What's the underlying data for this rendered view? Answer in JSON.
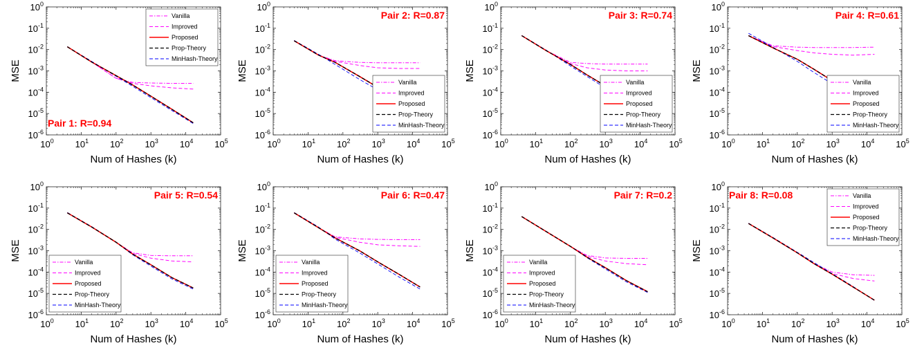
{
  "chart_data": {
    "type": "line",
    "xlabel": "Num of Hashes (k)",
    "ylabel": "MSE",
    "xscale": "log",
    "yscale": "log",
    "xlim": [
      1,
      100000
    ],
    "ylim": [
      1e-06,
      1
    ],
    "xticks": [
      "10",
      "10",
      "10",
      "10",
      "10",
      "10"
    ],
    "xtick_exponents": [
      "0",
      "1",
      "2",
      "3",
      "4",
      "5"
    ],
    "yticks": [
      "10",
      "10",
      "10",
      "10",
      "10",
      "10",
      "10"
    ],
    "ytick_exponents": [
      "-6",
      "-5",
      "-4",
      "-3",
      "-2",
      "-1",
      "0"
    ],
    "grid": false,
    "series_styles": [
      {
        "name": "Vanilla",
        "color": "#ff00ff",
        "dash": "dash-dot"
      },
      {
        "name": "Improved",
        "color": "#ff00ff",
        "dash": "dashed"
      },
      {
        "name": "Proposed",
        "color": "#ff0000",
        "dash": "solid"
      },
      {
        "name": "Prop-Theory",
        "color": "#000000",
        "dash": "dashed"
      },
      {
        "name": "MinHash-Theory",
        "color": "#0000ff",
        "dash": "dashed"
      }
    ],
    "panels": [
      {
        "label": "Pair 1:  R=0.94",
        "label_position": "bottom-left",
        "legend": "top-right",
        "x": [
          4,
          20,
          100,
          300,
          1000,
          4000,
          16384
        ],
        "series": [
          {
            "name": "Vanilla",
            "values": [
              0.0135,
              0.0026,
              0.00045,
              0.00029,
              0.00027,
              0.00026,
              0.00026
            ]
          },
          {
            "name": "Improved",
            "values": [
              0.0135,
              0.0026,
              0.00045,
              0.00026,
              0.0002,
              0.00016,
              0.00014
            ]
          },
          {
            "name": "Proposed",
            "values": [
              0.0135,
              0.0026,
              0.0006,
              0.00022,
              6.5e-05,
              1.6e-05,
              3.7e-06
            ]
          },
          {
            "name": "Prop-Theory",
            "values": [
              0.0135,
              0.0026,
              0.0006,
              0.00022,
              6.5e-05,
              1.6e-05,
              3.7e-06
            ]
          },
          {
            "name": "MinHash-Theory",
            "values": [
              0.0136,
              0.0028,
              0.00056,
              0.00019,
              5.6e-05,
              1.4e-05,
              3.4e-06
            ]
          }
        ]
      },
      {
        "label": "Pair 2:  R=0.87",
        "label_position": "top-right",
        "legend": "bottom-right",
        "x": [
          4,
          20,
          60,
          300,
          1000,
          4000,
          16384
        ],
        "series": [
          {
            "name": "Vanilla",
            "values": [
              0.026,
              0.0055,
              0.003,
              0.0025,
              0.0024,
              0.0024,
              0.0024
            ]
          },
          {
            "name": "Improved",
            "values": [
              0.026,
              0.0055,
              0.0028,
              0.0018,
              0.0014,
              0.0013,
              0.0013
            ]
          },
          {
            "name": "Proposed",
            "values": [
              0.026,
              0.0055,
              0.0025,
              0.00055,
              0.00017,
              4.2e-05,
              9.5e-06
            ]
          },
          {
            "name": "Prop-Theory",
            "values": [
              0.026,
              0.0055,
              0.0025,
              0.00055,
              0.00017,
              4.2e-05,
              9.5e-06
            ]
          },
          {
            "name": "MinHash-Theory",
            "values": [
              0.027,
              0.006,
              0.002,
              0.0004,
              0.00013,
              3.3e-05,
              7.8e-06
            ]
          }
        ]
      },
      {
        "label": "Pair 3:  R=0.74",
        "label_position": "top-right",
        "legend": "bottom-right",
        "x": [
          4,
          20,
          100,
          300,
          1000,
          4000,
          16384
        ],
        "series": [
          {
            "name": "Vanilla",
            "values": [
              0.045,
              0.009,
              0.0025,
              0.0022,
              0.0021,
              0.0021,
              0.0021
            ]
          },
          {
            "name": "Improved",
            "values": [
              0.045,
              0.009,
              0.0022,
              0.0014,
              0.0011,
              0.001,
              0.001
            ]
          },
          {
            "name": "Proposed",
            "values": [
              0.045,
              0.009,
              0.002,
              0.00065,
              0.0002,
              5e-05,
              1.6e-05
            ]
          },
          {
            "name": "Prop-Theory",
            "values": [
              0.045,
              0.009,
              0.002,
              0.00065,
              0.0002,
              5e-05,
              1.6e-05
            ]
          },
          {
            "name": "MinHash-Theory",
            "values": [
              0.046,
              0.0095,
              0.0017,
              0.00055,
              0.00016,
              4.2e-05,
              1.3e-05
            ]
          }
        ]
      },
      {
        "label": "Pair 4:  R=0.61",
        "label_position": "top-right",
        "legend": "bottom-right",
        "x": [
          4,
          20,
          100,
          300,
          1000,
          4000,
          16384
        ],
        "series": [
          {
            "name": "Vanilla",
            "values": [
              0.045,
              0.015,
              0.013,
              0.0125,
              0.0125,
              0.0125,
              0.013
            ]
          },
          {
            "name": "Improved",
            "values": [
              0.045,
              0.014,
              0.009,
              0.007,
              0.006,
              0.0055,
              0.006
            ]
          },
          {
            "name": "Proposed",
            "values": [
              0.045,
              0.012,
              0.0035,
              0.0012,
              0.00035,
              8e-05,
              3.3e-05
            ]
          },
          {
            "name": "Prop-Theory",
            "values": [
              0.045,
              0.012,
              0.0035,
              0.0012,
              0.00035,
              8e-05,
              2.8e-05
            ]
          },
          {
            "name": "MinHash-Theory",
            "values": [
              0.058,
              0.013,
              0.0028,
              0.00085,
              0.00025,
              6e-05,
              1.6e-05
            ]
          }
        ]
      },
      {
        "label": "Pair 5:  R=0.54",
        "label_position": "top-right",
        "legend": "bottom-left",
        "x": [
          4,
          20,
          100,
          300,
          1000,
          4000,
          16384
        ],
        "series": [
          {
            "name": "Vanilla",
            "values": [
              0.06,
              0.013,
              0.0025,
              0.0008,
              0.0006,
              0.00058,
              0.00058
            ]
          },
          {
            "name": "Improved",
            "values": [
              0.06,
              0.013,
              0.0025,
              0.00075,
              0.00045,
              0.00033,
              0.0003
            ]
          },
          {
            "name": "Proposed",
            "values": [
              0.06,
              0.013,
              0.0025,
              0.0007,
              0.00022,
              5.5e-05,
              1.8e-05
            ]
          },
          {
            "name": "Prop-Theory",
            "values": [
              0.06,
              0.013,
              0.0025,
              0.0007,
              0.00022,
              5.5e-05,
              1.8e-05
            ]
          },
          {
            "name": "MinHash-Theory",
            "values": [
              0.062,
              0.0135,
              0.0025,
              0.00065,
              0.00019,
              4.8e-05,
              1.6e-05
            ]
          }
        ]
      },
      {
        "label": "Pair 6:  R=0.47",
        "label_position": "top-right",
        "legend": "bottom-left",
        "x": [
          4,
          20,
          60,
          300,
          1000,
          4000,
          16384
        ],
        "series": [
          {
            "name": "Vanilla",
            "values": [
              0.06,
              0.012,
              0.0045,
              0.0036,
              0.0034,
              0.0033,
              0.0033
            ]
          },
          {
            "name": "Improved",
            "values": [
              0.06,
              0.012,
              0.0043,
              0.0025,
              0.0019,
              0.0017,
              0.0016
            ]
          },
          {
            "name": "Proposed",
            "values": [
              0.06,
              0.012,
              0.004,
              0.001,
              0.0003,
              8e-05,
              2e-05
            ]
          },
          {
            "name": "Prop-Theory",
            "values": [
              0.06,
              0.012,
              0.004,
              0.001,
              0.0003,
              8e-05,
              2e-05
            ]
          },
          {
            "name": "MinHash-Theory",
            "values": [
              0.062,
              0.013,
              0.0035,
              0.0008,
              0.00024,
              6e-05,
              1.6e-05
            ]
          }
        ]
      },
      {
        "label": "Pair 7:  R=0.2",
        "label_position": "top-right",
        "legend": "bottom-left",
        "x": [
          4,
          20,
          100,
          300,
          1000,
          4000,
          16384
        ],
        "series": [
          {
            "name": "Vanilla",
            "values": [
              0.04,
              0.008,
              0.0016,
              0.0006,
              0.00046,
              0.00044,
              0.00044
            ]
          },
          {
            "name": "Improved",
            "values": [
              0.04,
              0.008,
              0.0016,
              0.00055,
              0.00033,
              0.00025,
              0.00022
            ]
          },
          {
            "name": "Proposed",
            "values": [
              0.04,
              0.008,
              0.0016,
              0.0005,
              0.00016,
              4e-05,
              1.2e-05
            ]
          },
          {
            "name": "Prop-Theory",
            "values": [
              0.04,
              0.008,
              0.0016,
              0.0005,
              0.00016,
              4e-05,
              1.2e-05
            ]
          },
          {
            "name": "MinHash-Theory",
            "values": [
              0.04,
              0.0082,
              0.0016,
              0.00047,
              0.00014,
              3.5e-05,
              1.1e-05
            ]
          }
        ]
      },
      {
        "label": "Pair 8:  R=0.08",
        "label_position": "top-left",
        "legend": "top-right",
        "x": [
          4,
          20,
          100,
          300,
          1000,
          4000,
          16384
        ],
        "series": [
          {
            "name": "Vanilla",
            "values": [
              0.019,
              0.004,
              0.0008,
              0.00025,
              0.0001,
              7.5e-05,
              7e-05
            ]
          },
          {
            "name": "Improved",
            "values": [
              0.019,
              0.004,
              0.0008,
              0.00025,
              8.5e-05,
              5e-05,
              3.8e-05
            ]
          },
          {
            "name": "Proposed",
            "values": [
              0.019,
              0.004,
              0.0008,
              0.00025,
              8e-05,
              2e-05,
              4.8e-06
            ]
          },
          {
            "name": "Prop-Theory",
            "values": [
              0.019,
              0.004,
              0.0008,
              0.00025,
              8e-05,
              2e-05,
              4.8e-06
            ]
          },
          {
            "name": "MinHash-Theory",
            "values": [
              0.0195,
              0.0042,
              0.00085,
              0.00028,
              8.5e-05,
              2.1e-05,
              4.6e-06
            ]
          }
        ]
      }
    ]
  }
}
